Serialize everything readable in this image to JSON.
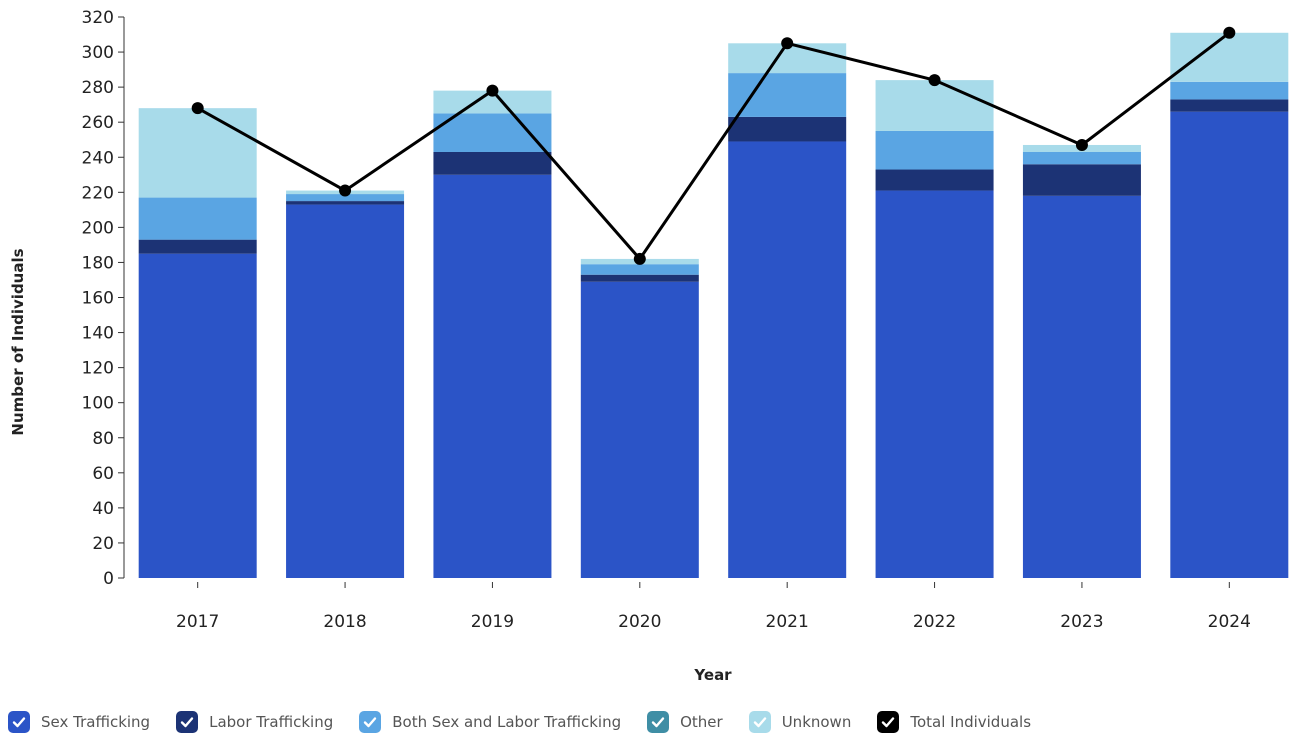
{
  "chart_data": {
    "type": "bar",
    "stacked": true,
    "categories": [
      "2017",
      "2018",
      "2019",
      "2020",
      "2021",
      "2022",
      "2023",
      "2024"
    ],
    "series": [
      {
        "name": "Sex Trafficking",
        "color": "#2b54c7",
        "values": [
          185,
          213,
          230,
          169,
          249,
          221,
          218,
          266
        ]
      },
      {
        "name": "Labor Trafficking",
        "color": "#1c3375",
        "values": [
          8,
          2,
          13,
          4,
          14,
          12,
          18,
          7
        ]
      },
      {
        "name": "Both Sex and Labor Trafficking",
        "color": "#5aa5e3",
        "values": [
          24,
          4,
          22,
          6,
          25,
          22,
          7,
          10
        ]
      },
      {
        "name": "Other",
        "color": "#3f8ea5",
        "values": [
          0,
          0,
          0,
          0,
          0,
          0,
          0,
          0
        ]
      },
      {
        "name": "Unknown",
        "color": "#a8dbea",
        "values": [
          51,
          2,
          13,
          3,
          17,
          29,
          4,
          28
        ]
      }
    ],
    "line_series": {
      "name": "Total Individuals",
      "color": "#000000",
      "values": [
        268,
        221,
        278,
        182,
        305,
        284,
        247,
        311
      ]
    },
    "xlabel": "Year",
    "ylabel": "Number of Individuals",
    "ylim": [
      0,
      320
    ],
    "yticks": [
      "0",
      "20",
      "40",
      "60",
      "80",
      "100",
      "120",
      "140",
      "160",
      "180",
      "200",
      "220",
      "240",
      "260",
      "280",
      "300",
      "320"
    ],
    "grid": false,
    "legend_position": "bottom-left"
  },
  "legend": [
    {
      "label": "Sex Trafficking",
      "color": "#2b54c7"
    },
    {
      "label": "Labor Trafficking",
      "color": "#1c3375"
    },
    {
      "label": "Both Sex and Labor Trafficking",
      "color": "#5aa5e3"
    },
    {
      "label": "Other",
      "color": "#3f8ea5"
    },
    {
      "label": "Unknown",
      "color": "#a8dbea"
    },
    {
      "label": "Total Individuals",
      "color": "#000000"
    }
  ]
}
